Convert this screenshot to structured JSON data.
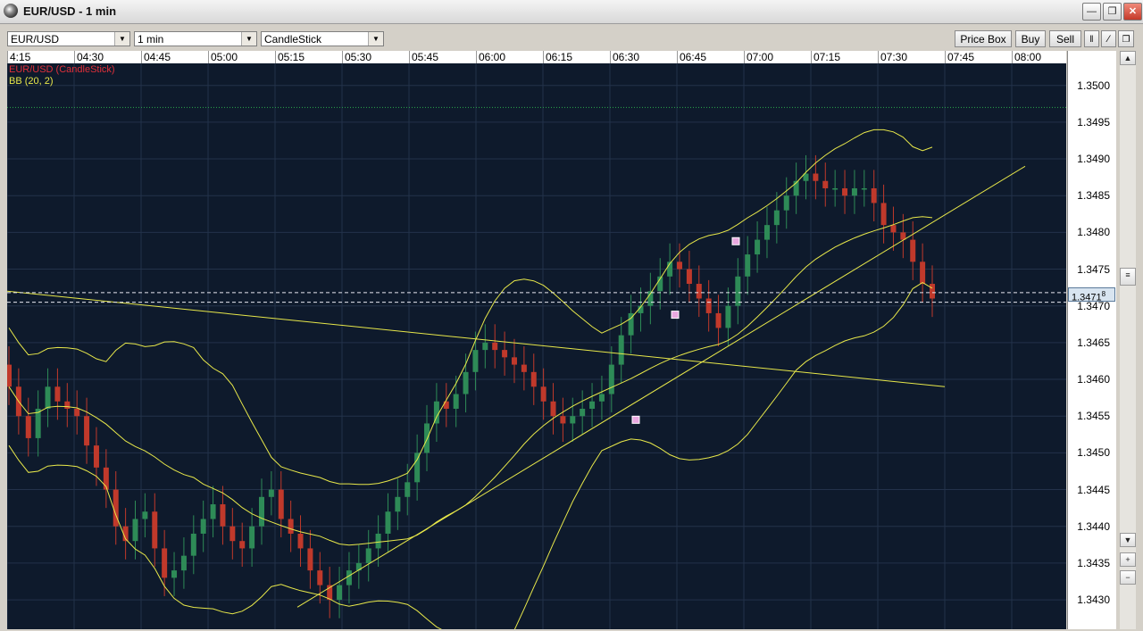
{
  "window": {
    "title": "EUR/USD - 1 min",
    "controls": [
      "minimize",
      "restore",
      "close"
    ]
  },
  "toolbar": {
    "symbol": "EUR/USD",
    "interval": "1 min",
    "chart_type": "CandleStick",
    "price_box": "Price Box",
    "buy": "Buy",
    "sell": "Sell"
  },
  "legend": {
    "series": "EUR/USD (CandleStick)",
    "indicator": "BB (20, 2)"
  },
  "colors": {
    "background": "#0e1a2c",
    "bull": "#2e8b57",
    "bear": "#c0392b",
    "bands": "#e8e84a",
    "legend_series": "#e0303a",
    "legend_indicator": "#e8e84a"
  },
  "chart_data": {
    "type": "candlestick",
    "time_labels": [
      "4:15",
      "04:30",
      "04:45",
      "05:00",
      "05:15",
      "05:30",
      "05:45",
      "06:00",
      "06:15",
      "06:30",
      "06:45",
      "07:00",
      "07:15",
      "07:30",
      "07:45",
      "08:00"
    ],
    "price_labels": [
      "1.3500",
      "1.3495",
      "1.3490",
      "1.3485",
      "1.3480",
      "1.3475",
      "1.3470",
      "1.3465",
      "1.3460",
      "1.3455",
      "1.3450",
      "1.3445",
      "1.3440",
      "1.3435",
      "1.3430"
    ],
    "current_price": "1.3471",
    "current_price_sup": "8",
    "ylim": [
      1.3426,
      1.3503
    ],
    "closes": [
      1.3459,
      1.3455,
      1.3452,
      1.3456,
      1.3459,
      1.3457,
      1.3456,
      1.3455,
      1.3451,
      1.3448,
      1.3445,
      1.344,
      1.3438,
      1.3441,
      1.3442,
      1.3437,
      1.3433,
      1.3434,
      1.3436,
      1.3439,
      1.3441,
      1.3443,
      1.344,
      1.3438,
      1.3437,
      1.344,
      1.3444,
      1.3445,
      1.3441,
      1.3439,
      1.3437,
      1.3434,
      1.3432,
      1.343,
      1.3432,
      1.3434,
      1.3435,
      1.3437,
      1.3439,
      1.3442,
      1.3444,
      1.3446,
      1.345,
      1.3454,
      1.3457,
      1.3456,
      1.3458,
      1.3461,
      1.3464,
      1.3465,
      1.3464,
      1.3463,
      1.3462,
      1.3461,
      1.3459,
      1.3457,
      1.3455,
      1.3454,
      1.3455,
      1.3456,
      1.3457,
      1.3458,
      1.3462,
      1.3466,
      1.3469,
      1.347,
      1.3472,
      1.3474,
      1.3476,
      1.3475,
      1.3473,
      1.3471,
      1.3469,
      1.3467,
      1.347,
      1.3474,
      1.3477,
      1.3479,
      1.3481,
      1.3483,
      1.3485,
      1.3487,
      1.3488,
      1.3487,
      1.3486,
      1.3486,
      1.3485,
      1.3486,
      1.3486,
      1.3484,
      1.3481,
      1.348,
      1.3479,
      1.3476,
      1.3473,
      1.3471
    ],
    "bands_note": "Bollinger Bands (20, 2) drawn around price",
    "trend_lines": [
      {
        "from_time": "4:15",
        "from_price": 1.3472,
        "to_time": "07:45",
        "to_price": 1.3459
      },
      {
        "from_time": "05:20",
        "from_price": 1.3429,
        "to_time": "08:03",
        "to_price": 1.3489
      }
    ],
    "horizontal_lines": [
      1.34718,
      1.34705,
      1.3497
    ]
  }
}
